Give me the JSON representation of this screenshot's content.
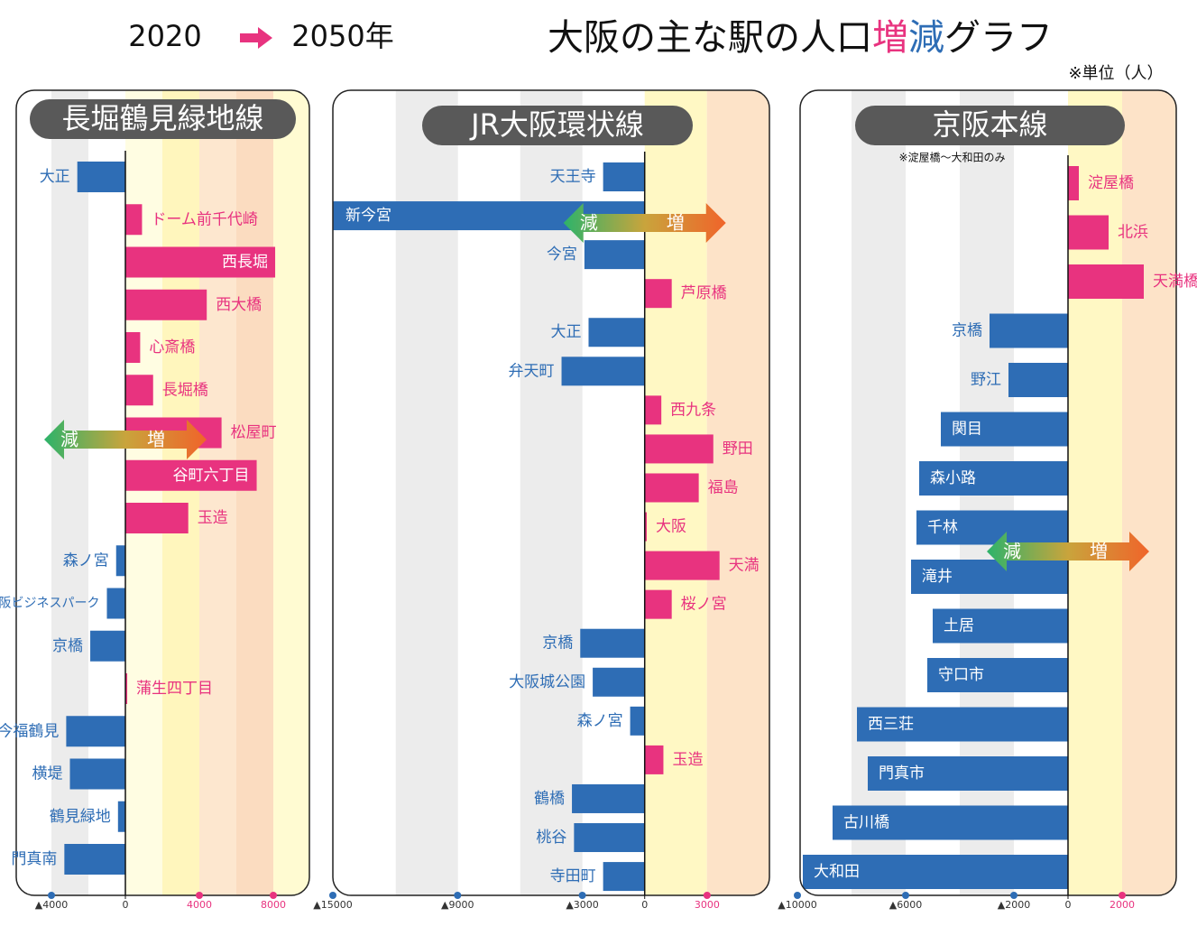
{
  "header": {
    "from": "2020",
    "to": "2050年",
    "title": "大阪の主な駅の人口増減グラフ",
    "unit_note": "※単位（人）",
    "increase_label": "増",
    "decrease_label": "減",
    "increase_color": "#e8337f",
    "decrease_color": "#2e6db5"
  },
  "chart_data": [
    {
      "type": "bar",
      "orientation": "horizontal",
      "title": "長堀鶴見緑地線",
      "categories": [
        "大正",
        "ドーム前千代崎",
        "西長堀",
        "西大橋",
        "心斎橋",
        "長堀橋",
        "松屋町",
        "谷町六丁目",
        "玉造",
        "森ノ宮",
        "大阪ビジネスパーク",
        "京橋",
        "蒲生四丁目",
        "今福鶴見",
        "横堤",
        "鶴見緑地",
        "門真南"
      ],
      "values": [
        -2600,
        900,
        8100,
        4400,
        800,
        1500,
        5200,
        7100,
        3400,
        -500,
        -1000,
        -1900,
        100,
        -3200,
        -3000,
        -400,
        -3300
      ],
      "xlim": [
        -6000,
        10000
      ],
      "xticks": [
        {
          "value": -4000,
          "label": "▲4000"
        },
        0,
        4000,
        8000
      ],
      "annotation": {
        "decrease": "減",
        "increase": "増"
      }
    },
    {
      "type": "bar",
      "orientation": "horizontal",
      "title": "JR大阪環状線",
      "categories": [
        "天王寺",
        "新今宮",
        "今宮",
        "芦原橋",
        "大正",
        "弁天町",
        "西九条",
        "野田",
        "福島",
        "大阪",
        "天満",
        "桜ノ宮",
        "京橋",
        "大阪城公園",
        "森ノ宮",
        "玉造",
        "鶴橋",
        "桃谷",
        "寺田町"
      ],
      "values": [
        -2000,
        -15000,
        -2900,
        1300,
        -2700,
        -4000,
        800,
        3300,
        2600,
        100,
        3600,
        1300,
        -3100,
        -2500,
        -700,
        900,
        -3500,
        -3400,
        -2000
      ],
      "xlim": [
        -15000,
        6000
      ],
      "xticks": [
        {
          "value": -15000,
          "label": "▲15000"
        },
        {
          "value": -9000,
          "label": "▲9000"
        },
        {
          "value": -3000,
          "label": "▲3000"
        },
        0,
        3000
      ],
      "annotation": {
        "decrease": "減",
        "increase": "増"
      }
    },
    {
      "type": "bar",
      "orientation": "horizontal",
      "title": "京阪本線",
      "note": "※淀屋橋～大和田のみ",
      "categories": [
        "淀屋橋",
        "北浜",
        "天満橋",
        "京橋",
        "野江",
        "関目",
        "森小路",
        "千林",
        "滝井",
        "土居",
        "守口市",
        "西三荘",
        "門真市",
        "古川橋",
        "大和田"
      ],
      "values": [
        400,
        1500,
        2800,
        -2900,
        -2200,
        -4700,
        -5500,
        -5600,
        -5800,
        -5000,
        -5200,
        -7800,
        -7400,
        -8700,
        -9800
      ],
      "xlim": [
        -10000,
        4000
      ],
      "xticks": [
        {
          "value": -10000,
          "label": "▲10000"
        },
        {
          "value": -6000,
          "label": "▲6000"
        },
        {
          "value": -2000,
          "label": "▲2000"
        },
        0,
        2000
      ],
      "annotation": {
        "decrease": "減",
        "increase": "増"
      }
    }
  ]
}
